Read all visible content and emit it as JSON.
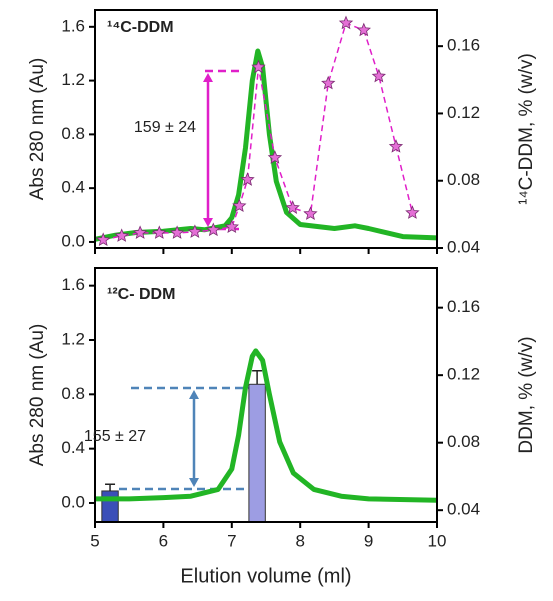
{
  "chart_data": [
    {
      "type": "line",
      "label": "¹⁴C-DDM",
      "label_color": "#e01fc9",
      "annotation": "159 ± 24",
      "annotation_color": "#e01fc9",
      "ylabel": "Abs 280 nm (Au)",
      "y2label": "¹⁴C-DDM, % (w/v)",
      "xlim": [
        5,
        10
      ],
      "xticks": [
        5,
        6,
        7,
        8,
        9,
        10
      ],
      "show_xtick_labels": false,
      "ylim": [
        -0.045,
        1.725
      ],
      "yticks": [
        {
          "value": 0,
          "label": "0.0"
        },
        0.4,
        0.8,
        1.2,
        1.6
      ],
      "y2lim": [
        0.04,
        0.1815
      ],
      "y2ticks": [
        0.04,
        0.08,
        0.12,
        0.16
      ],
      "series": [
        {
          "style": "line",
          "color": "#22b525",
          "x": [
            5.0,
            5.3,
            5.6,
            6.0,
            6.4,
            6.6,
            6.9,
            7.0,
            7.1,
            7.2,
            7.3,
            7.38,
            7.45,
            7.55,
            7.65,
            7.8,
            8.0,
            8.5,
            8.8,
            9.0,
            9.5,
            10.0
          ],
          "values": [
            0.02,
            0.05,
            0.07,
            0.08,
            0.1,
            0.09,
            0.12,
            0.18,
            0.35,
            0.7,
            1.2,
            1.42,
            1.3,
            0.8,
            0.45,
            0.22,
            0.13,
            0.1,
            0.12,
            0.1,
            0.04,
            0.03
          ]
        },
        {
          "style": "dashed-star",
          "axis": "y2",
          "color": "#e01fc9",
          "x": [
            5.12,
            5.39,
            5.66,
            5.94,
            6.2,
            6.46,
            6.73,
            7.0,
            7.11,
            7.23,
            7.39,
            7.63,
            7.89,
            8.15,
            8.41,
            8.67,
            8.93,
            9.15,
            9.4,
            9.64
          ],
          "values": [
            0.0448,
            0.0472,
            0.049,
            0.049,
            0.049,
            0.0496,
            0.0507,
            0.0525,
            0.065,
            0.0806,
            0.1475,
            0.0937,
            0.0639,
            0.0603,
            0.1379,
            0.1737,
            0.1695,
            0.1421,
            0.1003,
            0.0609
          ]
        }
      ]
    },
    {
      "type": "line",
      "label": "¹²C- DDM",
      "label_color": "#4a72d8",
      "annotation": "155 ± 27",
      "annotation_color": "#1a2faa",
      "ylabel": "Abs 280 nm (Au)",
      "y2label": "DDM, % (w/v)",
      "xlabel": "Elution volume (ml)",
      "xlim": [
        5,
        10
      ],
      "xticks": [
        5,
        6,
        7,
        8,
        9,
        10
      ],
      "show_xtick_labels": true,
      "ylim": [
        -0.14,
        1.73
      ],
      "yticks": [
        {
          "value": 0,
          "label": "0.0"
        },
        0.4,
        0.8,
        1.2,
        1.6
      ],
      "y2lim": [
        0.033,
        0.1835
      ],
      "y2ticks": [
        0.04,
        0.08,
        0.12,
        0.16
      ],
      "series": [
        {
          "style": "bar",
          "axis": "y2",
          "colors": [
            "#3b4fb8",
            "#9d9de3"
          ],
          "x": [
            5.22,
            7.37
          ],
          "values": [
            0.0514,
            0.1146
          ],
          "errors": [
            0.004,
            0.008
          ]
        },
        {
          "style": "line",
          "color": "#22b525",
          "x": [
            5.0,
            5.5,
            6.0,
            6.4,
            6.8,
            7.0,
            7.1,
            7.2,
            7.3,
            7.35,
            7.45,
            7.55,
            7.7,
            7.9,
            8.2,
            8.6,
            9.0,
            10.0
          ],
          "values": [
            0.03,
            0.03,
            0.04,
            0.05,
            0.1,
            0.25,
            0.5,
            0.85,
            1.08,
            1.12,
            1.05,
            0.8,
            0.45,
            0.22,
            0.1,
            0.05,
            0.03,
            0.02
          ]
        }
      ]
    }
  ]
}
